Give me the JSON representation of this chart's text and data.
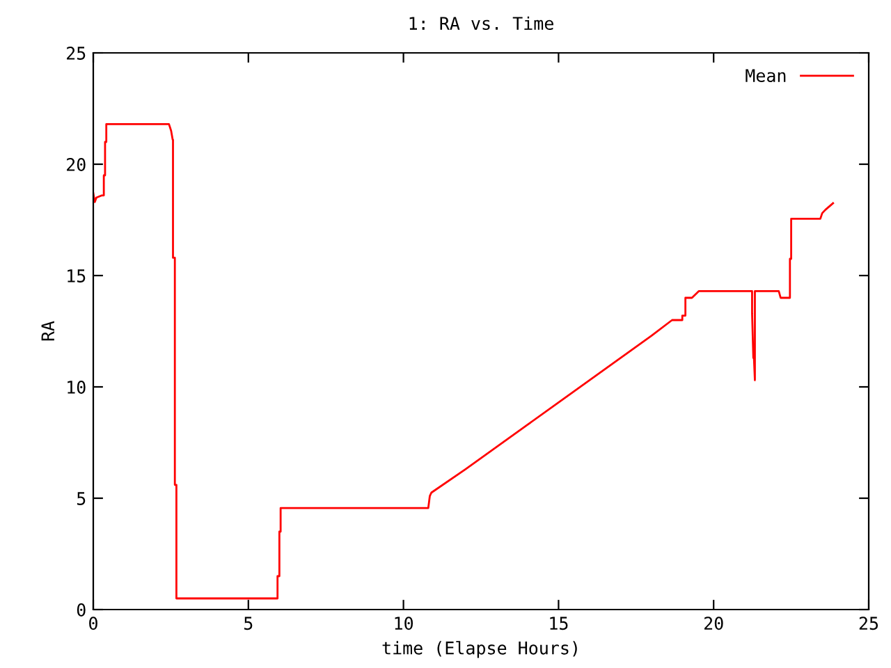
{
  "chart_data": {
    "type": "line",
    "title": "1: RA vs. Time",
    "xlabel": "time (Elapse Hours)",
    "ylabel": "RA",
    "xlim": [
      0,
      25
    ],
    "xticks": [
      0,
      5,
      10,
      15,
      20,
      25
    ],
    "ylim": [
      0,
      25
    ],
    "yticks": [
      0,
      5,
      10,
      15,
      20,
      25
    ],
    "grid": false,
    "legend": "top right",
    "marker": "none",
    "line_style": "solid",
    "series": [
      {
        "name": "Mean",
        "color": "#ff0000",
        "x": [
          0.0,
          0.05,
          0.1,
          0.28,
          0.34,
          0.34,
          0.38,
          0.38,
          0.42,
          0.42,
          2.44,
          2.51,
          2.56,
          2.57,
          2.57,
          2.63,
          2.63,
          2.68,
          2.68,
          5.94,
          5.94,
          6.0,
          6.0,
          6.04,
          6.04,
          10.8,
          10.85,
          10.9,
          12.0,
          13.0,
          14.0,
          15.0,
          16.0,
          17.0,
          18.0,
          18.66,
          18.99,
          18.99,
          19.09,
          19.09,
          19.3,
          19.52,
          21.24,
          21.24,
          21.28,
          21.3,
          21.33,
          21.33,
          21.41,
          21.41,
          22.1,
          22.16,
          22.46,
          22.46,
          22.5,
          22.5,
          23.44,
          23.5,
          23.6,
          23.85
        ],
        "values": [
          18.7,
          18.3,
          18.5,
          18.6,
          18.6,
          19.5,
          19.5,
          21.0,
          21.0,
          21.8,
          21.8,
          21.5,
          21.1,
          21.1,
          15.8,
          15.8,
          5.6,
          5.6,
          0.5,
          0.5,
          1.5,
          1.5,
          3.5,
          3.5,
          4.56,
          4.56,
          5.1,
          5.25,
          6.3,
          7.3,
          8.3,
          9.3,
          10.3,
          11.3,
          12.3,
          13.0,
          13.0,
          13.2,
          13.2,
          14.0,
          14.0,
          14.3,
          14.3,
          13.3,
          11.3,
          11.3,
          10.3,
          14.3,
          14.3,
          14.3,
          14.3,
          14.0,
          14.0,
          15.75,
          15.75,
          17.55,
          17.55,
          17.8,
          17.95,
          18.25
        ]
      }
    ]
  }
}
